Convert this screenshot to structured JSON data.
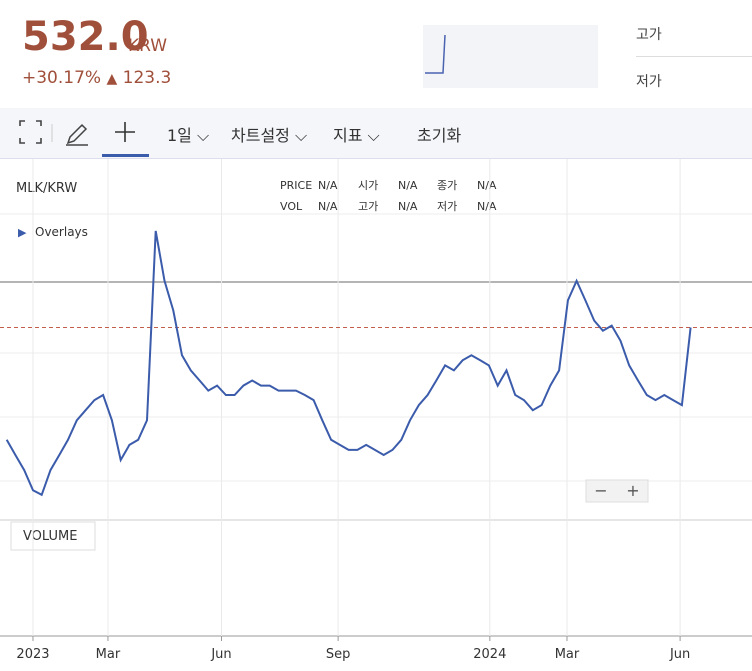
{
  "header": {
    "price": "532.0",
    "currency": "KRW",
    "change_pct": "+30.17%",
    "change_abs": "123.3",
    "high_label": "고가",
    "low_label": "저가"
  },
  "toolbar": {
    "interval": "1일",
    "settings": "차트설정",
    "indicators": "지표",
    "reset": "초기화"
  },
  "legend": {
    "symbol": "MLK/KRW",
    "overlays": "Overlays",
    "rows": [
      [
        "PRICE",
        "N/A",
        "시가",
        "N/A",
        "종가",
        "N/A"
      ],
      [
        "VOL",
        "N/A",
        "고가",
        "N/A",
        "저가",
        "N/A"
      ]
    ]
  },
  "volume_label": "VOLUME",
  "zoom": [
    "−",
    "+"
  ],
  "chart_data": {
    "type": "line",
    "color": "#3b5bab",
    "x": [
      -3,
      -2,
      -1,
      0,
      1,
      2,
      3,
      4,
      5,
      6,
      7,
      8,
      9,
      10,
      11,
      12,
      13,
      14,
      15,
      16,
      17,
      18,
      19,
      20,
      21,
      22,
      23,
      24,
      25,
      26,
      27,
      28,
      29,
      30,
      31,
      32,
      33,
      34,
      35,
      36,
      37,
      38,
      39,
      40,
      41,
      42,
      43,
      44,
      45,
      46,
      47,
      48,
      49,
      50,
      51,
      52,
      53,
      54,
      55,
      56,
      57,
      58,
      59,
      60,
      61,
      62,
      63,
      64,
      65,
      66,
      67,
      68,
      69,
      70,
      71,
      72,
      73,
      74,
      75
    ],
    "values": [
      354,
      330,
      306,
      274,
      267,
      306,
      330,
      354,
      385,
      401,
      417,
      425,
      385,
      322,
      346,
      354,
      385,
      685,
      606,
      559,
      488,
      464,
      448,
      432,
      440,
      425,
      425,
      440,
      448,
      440,
      440,
      432,
      432,
      432,
      425,
      417,
      385,
      354,
      346,
      338,
      338,
      346,
      338,
      330,
      338,
      354,
      385,
      409,
      425,
      448,
      472,
      464,
      480,
      488,
      480,
      472,
      440,
      464,
      425,
      417,
      401,
      409,
      440,
      464,
      575,
      606,
      575,
      543,
      527,
      535,
      511,
      472,
      448,
      425,
      417,
      425,
      417,
      409,
      532
    ],
    "xlim": [
      -3.76,
      82
    ],
    "ylim": [
      227,
      799
    ],
    "xticks": [
      {
        "value": 0,
        "label": "2023"
      },
      {
        "value": 8.55,
        "label": "Mar"
      },
      {
        "value": 21.5,
        "label": "Jun"
      },
      {
        "value": 34.8,
        "label": "Sep"
      },
      {
        "value": 52.1,
        "label": "2024"
      },
      {
        "value": 60.9,
        "label": "Mar"
      },
      {
        "value": 73.8,
        "label": "Jun"
      }
    ]
  }
}
